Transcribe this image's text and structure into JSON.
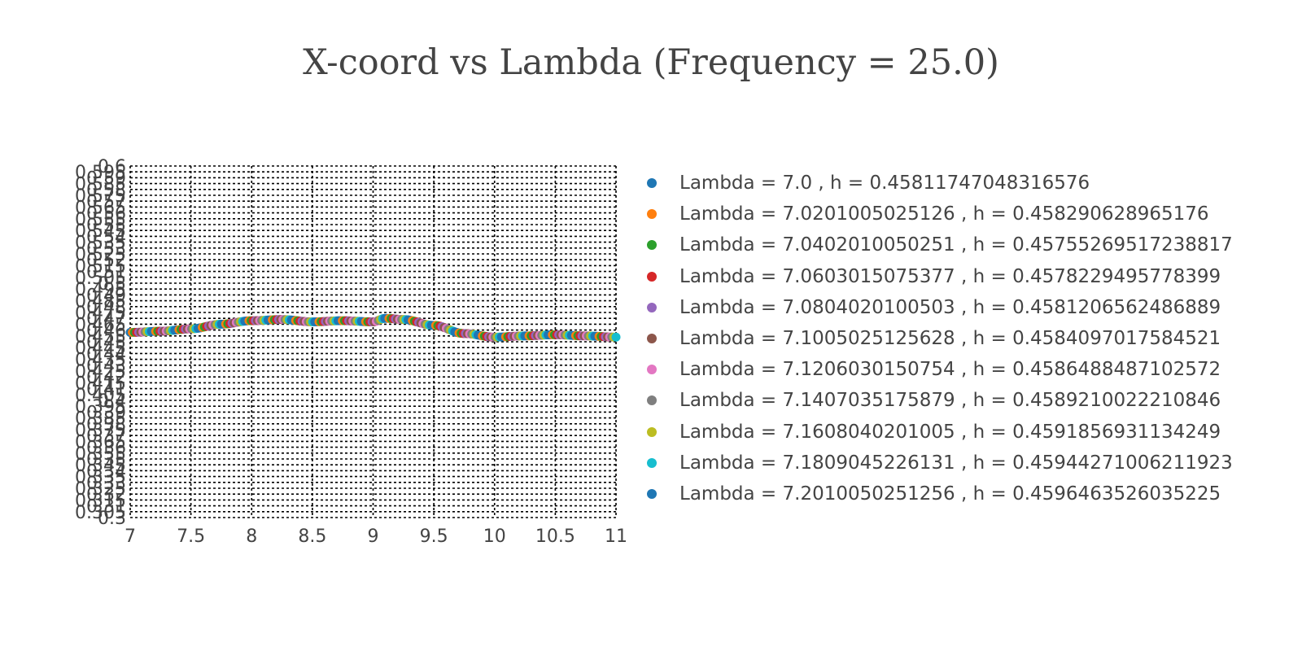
{
  "chart_data": {
    "type": "scatter",
    "title": "X-coord vs Lambda (Frequency = 25.0)",
    "xlabel": "",
    "ylabel": "",
    "xlim": [
      7,
      11
    ],
    "ylim": [
      0.3,
      0.6
    ],
    "x_ticks": [
      "7",
      "7.5",
      "8",
      "8.5",
      "9",
      "9.5",
      "10",
      "10.5",
      "11"
    ],
    "y_ticks": [
      "0.3",
      "0.305",
      "0.31",
      "0.315",
      "0.32",
      "0.325",
      "0.33",
      "0.335",
      "0.34",
      "0.345",
      "0.35",
      "0.355",
      "0.36",
      "0.365",
      "0.37",
      "0.375",
      "0.38",
      "0.385",
      "0.39",
      "0.395",
      "0.4",
      "0.405",
      "0.41",
      "0.415",
      "0.42",
      "0.425",
      "0.43",
      "0.435",
      "0.44",
      "0.445",
      "0.45",
      "0.455",
      "0.46",
      "0.465",
      "0.47",
      "0.475",
      "0.48",
      "0.485",
      "0.49",
      "0.495",
      "0.5",
      "0.505",
      "0.51",
      "0.515",
      "0.52",
      "0.525",
      "0.53",
      "0.535",
      "0.54",
      "0.545",
      "0.55",
      "0.555",
      "0.56",
      "0.565",
      "0.57",
      "0.575",
      "0.58",
      "0.585",
      "0.59",
      "0.595",
      "0.6"
    ],
    "grid": true,
    "legend_position": "right",
    "x": [
      7.0,
      7.25,
      7.5,
      7.75,
      8.0,
      8.25,
      8.5,
      8.75,
      9.0,
      9.1,
      9.25,
      9.5,
      9.75,
      10.0,
      10.25,
      10.5,
      10.75,
      11.0
    ],
    "y": [
      0.458,
      0.459,
      0.461,
      0.465,
      0.468,
      0.469,
      0.467,
      0.468,
      0.467,
      0.47,
      0.469,
      0.464,
      0.457,
      0.454,
      0.455,
      0.456,
      0.455,
      0.454
    ],
    "series": [
      {
        "name": "Lambda = 7.0 , h = 0.45811747048316576",
        "color": "#1f77b4"
      },
      {
        "name": "Lambda = 7.0201005025126 , h = 0.458290628965176",
        "color": "#ff7f0e"
      },
      {
        "name": "Lambda = 7.0402010050251 , h = 0.45755269517238817",
        "color": "#2ca02c"
      },
      {
        "name": "Lambda = 7.0603015075377 , h = 0.4578229495778399",
        "color": "#d62728"
      },
      {
        "name": "Lambda = 7.0804020100503 , h = 0.4581206562486889",
        "color": "#9467bd"
      },
      {
        "name": "Lambda = 7.1005025125628 , h = 0.4584097017584521",
        "color": "#8c564b"
      },
      {
        "name": "Lambda = 7.1206030150754 , h = 0.4586488487102572",
        "color": "#e377c2"
      },
      {
        "name": "Lambda = 7.1407035175879 , h = 0.4589210022210846",
        "color": "#7f7f7f"
      },
      {
        "name": "Lambda = 7.1608040201005 , h = 0.4591856931134249",
        "color": "#bcbd22"
      },
      {
        "name": "Lambda = 7.1809045226131 , h = 0.45944271006211923",
        "color": "#17becf"
      },
      {
        "name": "Lambda = 7.2010050251256 , h = 0.4596463526035225",
        "color": "#1f77b4"
      }
    ]
  }
}
